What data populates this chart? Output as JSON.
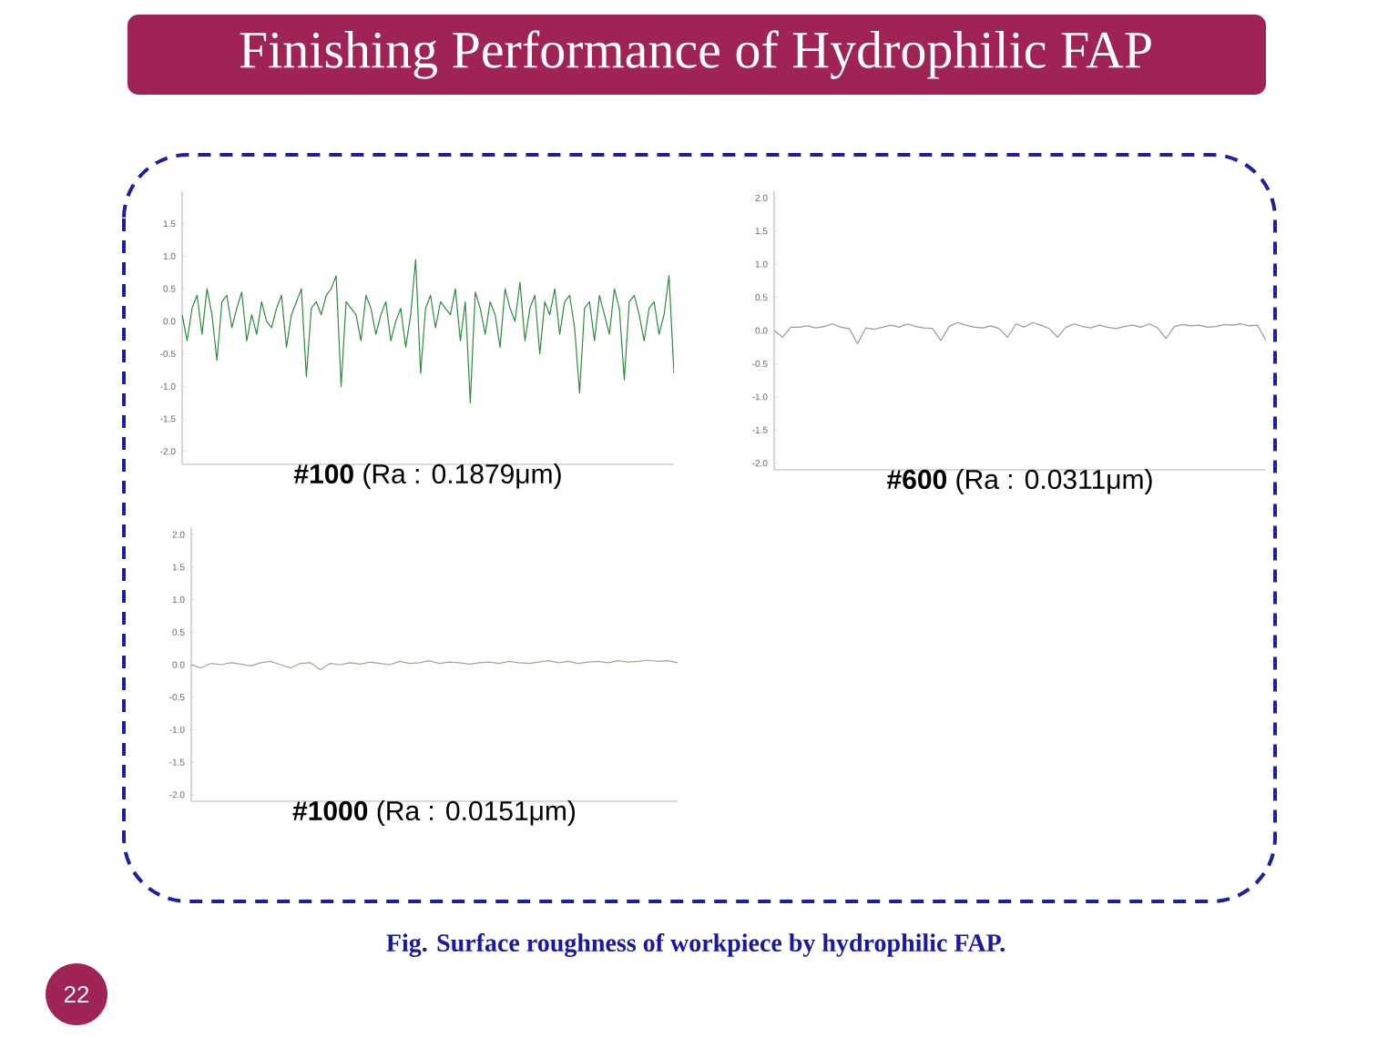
{
  "chart_data": [
    {
      "type": "line",
      "title": "Finishing Performance of Hydrophilic FAP",
      "xlabel": "**#100** (Ra : 0.1879μm)",
      "annotations": [
        "Fig. Surface roughness of workpiece by hydrophilic FAP.",
        "22"
      ],
      "color": "#2e8b3e",
      "tick_labels": "y",
      "ylim": [
        -2.2,
        2.0
      ],
      "yticks": [
        {
          "value": 1.5,
          "label": "1.5"
        },
        {
          "value": 1,
          "label": "1.0"
        },
        {
          "value": 0.5,
          "label": "0.5"
        },
        {
          "value": 0,
          "label": "0.0"
        },
        {
          "value": -0.5,
          "label": "-0.5"
        },
        {
          "value": -1,
          "label": "-1.0"
        },
        {
          "value": -1.5,
          "label": "-1.5"
        },
        {
          "value": -2,
          "label": "-2.0"
        }
      ],
      "categories": [
        null,
        null,
        null,
        null,
        null,
        null,
        null,
        null,
        null,
        null,
        null,
        null,
        null,
        null,
        null,
        null,
        null,
        null,
        null,
        null,
        null,
        null,
        null,
        null,
        null,
        null,
        null,
        null,
        null,
        null,
        null,
        null,
        null,
        null,
        null,
        null,
        null,
        null,
        null,
        null,
        null,
        null,
        null,
        null,
        null,
        null,
        null,
        null,
        null,
        null,
        null,
        null,
        null,
        null,
        null,
        null,
        null,
        null,
        null,
        null,
        null,
        null,
        null,
        null,
        null,
        null,
        null,
        null,
        null,
        null,
        null,
        null,
        null,
        null,
        null,
        null,
        null,
        null,
        null,
        null,
        null,
        null,
        null,
        null,
        null,
        null,
        null,
        null,
        null,
        null,
        null,
        null,
        null,
        null,
        null,
        null,
        null,
        null,
        null,
        null
      ],
      "values": [
        0.1,
        -0.3,
        0.2,
        0.4,
        -0.2,
        0.5,
        0.1,
        -0.6,
        0.3,
        0.4,
        -0.1,
        0.2,
        0.45,
        -0.3,
        0.1,
        -0.2,
        0.3,
        0.0,
        -0.1,
        0.2,
        0.4,
        -0.4,
        0.1,
        0.3,
        0.5,
        -0.85,
        0.2,
        0.3,
        0.1,
        0.4,
        0.5,
        0.7,
        -1.0,
        0.3,
        0.2,
        0.1,
        -0.3,
        0.4,
        0.2,
        -0.2,
        0.1,
        0.3,
        -0.3,
        0.0,
        0.2,
        -0.4,
        0.1,
        0.95,
        -0.8,
        0.2,
        0.4,
        -0.1,
        0.3,
        0.2,
        0.1,
        0.5,
        -0.3,
        0.3,
        -1.25,
        0.45,
        0.2,
        -0.2,
        0.3,
        0.1,
        -0.4,
        0.5,
        0.2,
        0.0,
        0.6,
        -0.3,
        0.2,
        0.4,
        -0.5,
        0.3,
        0.1,
        0.5,
        -0.2,
        0.3,
        0.4,
        -0.1,
        -1.1,
        0.2,
        0.3,
        -0.3,
        0.4,
        0.1,
        -0.2,
        0.5,
        0.2,
        -0.9,
        0.3,
        0.4,
        0.1,
        -0.3,
        0.2,
        0.3,
        -0.2,
        0.1,
        0.7,
        -0.8
      ]
    },
    {
      "type": "line",
      "xlabel": "**#600** (Ra : 0.0311μm)",
      "color": "#9a9a9a",
      "tick_labels": "y",
      "ylim": [
        -2.1,
        2.1
      ],
      "yticks": [
        {
          "value": 2,
          "label": "2.0"
        },
        {
          "value": 1.5,
          "label": "1.5"
        },
        {
          "value": 1,
          "label": "1.0"
        },
        {
          "value": 0.5,
          "label": "0.5"
        },
        {
          "value": 0,
          "label": "0.0"
        },
        {
          "value": -0.5,
          "label": "-0.5"
        },
        {
          "value": -1,
          "label": "-1.0"
        },
        {
          "value": -1.5,
          "label": "-1.5"
        },
        {
          "value": -2,
          "label": "-2.0"
        }
      ],
      "categories": [
        null,
        null,
        null,
        null,
        null,
        null,
        null,
        null,
        null,
        null,
        null,
        null,
        null,
        null,
        null,
        null,
        null,
        null,
        null,
        null,
        null,
        null,
        null,
        null,
        null,
        null,
        null,
        null,
        null,
        null,
        null,
        null,
        null,
        null,
        null,
        null,
        null,
        null,
        null,
        null,
        null,
        null,
        null,
        null,
        null,
        null,
        null,
        null,
        null,
        null,
        null,
        null,
        null,
        null,
        null,
        null,
        null,
        null,
        null,
        null
      ],
      "values": [
        0.0,
        -0.1,
        0.05,
        0.05,
        0.07,
        0.04,
        0.06,
        0.1,
        0.05,
        0.03,
        -0.2,
        0.04,
        0.02,
        0.05,
        0.08,
        0.05,
        0.1,
        0.06,
        0.04,
        0.03,
        -0.15,
        0.06,
        0.12,
        0.08,
        0.05,
        0.04,
        0.07,
        0.03,
        -0.1,
        0.1,
        0.05,
        0.12,
        0.08,
        0.03,
        -0.1,
        0.05,
        0.1,
        0.06,
        0.04,
        0.08,
        0.05,
        0.03,
        0.06,
        0.08,
        0.05,
        0.1,
        0.04,
        -0.12,
        0.06,
        0.09,
        0.07,
        0.08,
        0.05,
        0.06,
        0.09,
        0.08,
        0.1,
        0.07,
        0.08,
        -0.15
      ]
    },
    {
      "type": "line",
      "xlabel": "**#1000** (Ra : 0.0151μm)",
      "color": "#a0a890",
      "tick_labels": "y",
      "ylim": [
        -2.1,
        2.1
      ],
      "yticks": [
        {
          "value": 2,
          "label": "2.0"
        },
        {
          "value": 1.5,
          "label": "1.5"
        },
        {
          "value": 1,
          "label": "1.0"
        },
        {
          "value": 0.5,
          "label": "0.5"
        },
        {
          "value": 0,
          "label": "0.0"
        },
        {
          "value": -0.5,
          "label": "-0.5"
        },
        {
          "value": -1,
          "label": "-1.0"
        },
        {
          "value": -1.5,
          "label": "-1.5"
        },
        {
          "value": -2,
          "label": "-2.0"
        }
      ],
      "categories": [
        null,
        null,
        null,
        null,
        null,
        null,
        null,
        null,
        null,
        null,
        null,
        null,
        null,
        null,
        null,
        null,
        null,
        null,
        null,
        null,
        null,
        null,
        null,
        null,
        null,
        null,
        null,
        null,
        null,
        null,
        null,
        null,
        null,
        null,
        null,
        null,
        null,
        null,
        null,
        null,
        null,
        null,
        null,
        null,
        null,
        null,
        null,
        null,
        null,
        null
      ],
      "values": [
        0.0,
        -0.05,
        0.02,
        0.0,
        0.03,
        0.01,
        -0.02,
        0.03,
        0.05,
        0.0,
        -0.05,
        0.02,
        0.03,
        -0.08,
        0.02,
        0.0,
        0.03,
        0.01,
        0.04,
        0.02,
        0.0,
        0.05,
        0.02,
        0.03,
        0.06,
        0.02,
        0.04,
        0.03,
        0.01,
        0.03,
        0.04,
        0.02,
        0.05,
        0.03,
        0.02,
        0.04,
        0.06,
        0.03,
        0.05,
        0.02,
        0.04,
        0.05,
        0.03,
        0.06,
        0.04,
        0.05,
        0.07,
        0.05,
        0.06,
        0.03
      ]
    }
  ]
}
